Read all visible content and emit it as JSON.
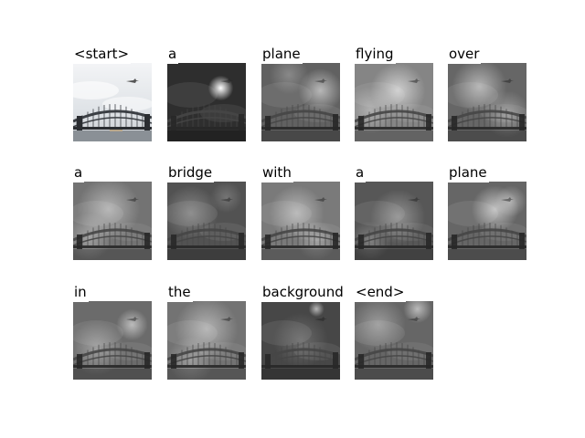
{
  "figure": {
    "caption_tokens": [
      {
        "word": "<start>",
        "variant": "original"
      },
      {
        "word": "a",
        "variant": "attention"
      },
      {
        "word": "plane",
        "variant": "attention"
      },
      {
        "word": "flying",
        "variant": "attention"
      },
      {
        "word": "over",
        "variant": "attention"
      },
      {
        "word": "a",
        "variant": "attention"
      },
      {
        "word": "bridge",
        "variant": "attention"
      },
      {
        "word": "with",
        "variant": "attention"
      },
      {
        "word": "a",
        "variant": "attention"
      },
      {
        "word": "plane",
        "variant": "attention"
      },
      {
        "word": "in",
        "variant": "attention"
      },
      {
        "word": "the",
        "variant": "attention"
      },
      {
        "word": "background",
        "variant": "attention"
      },
      {
        "word": "<end>",
        "variant": "attention"
      }
    ],
    "image_subject": "arch-bridge-with-plane",
    "colors": {
      "background": "#ffffff",
      "text": "#000000",
      "sky_original": "#dfe3e7"
    }
  }
}
